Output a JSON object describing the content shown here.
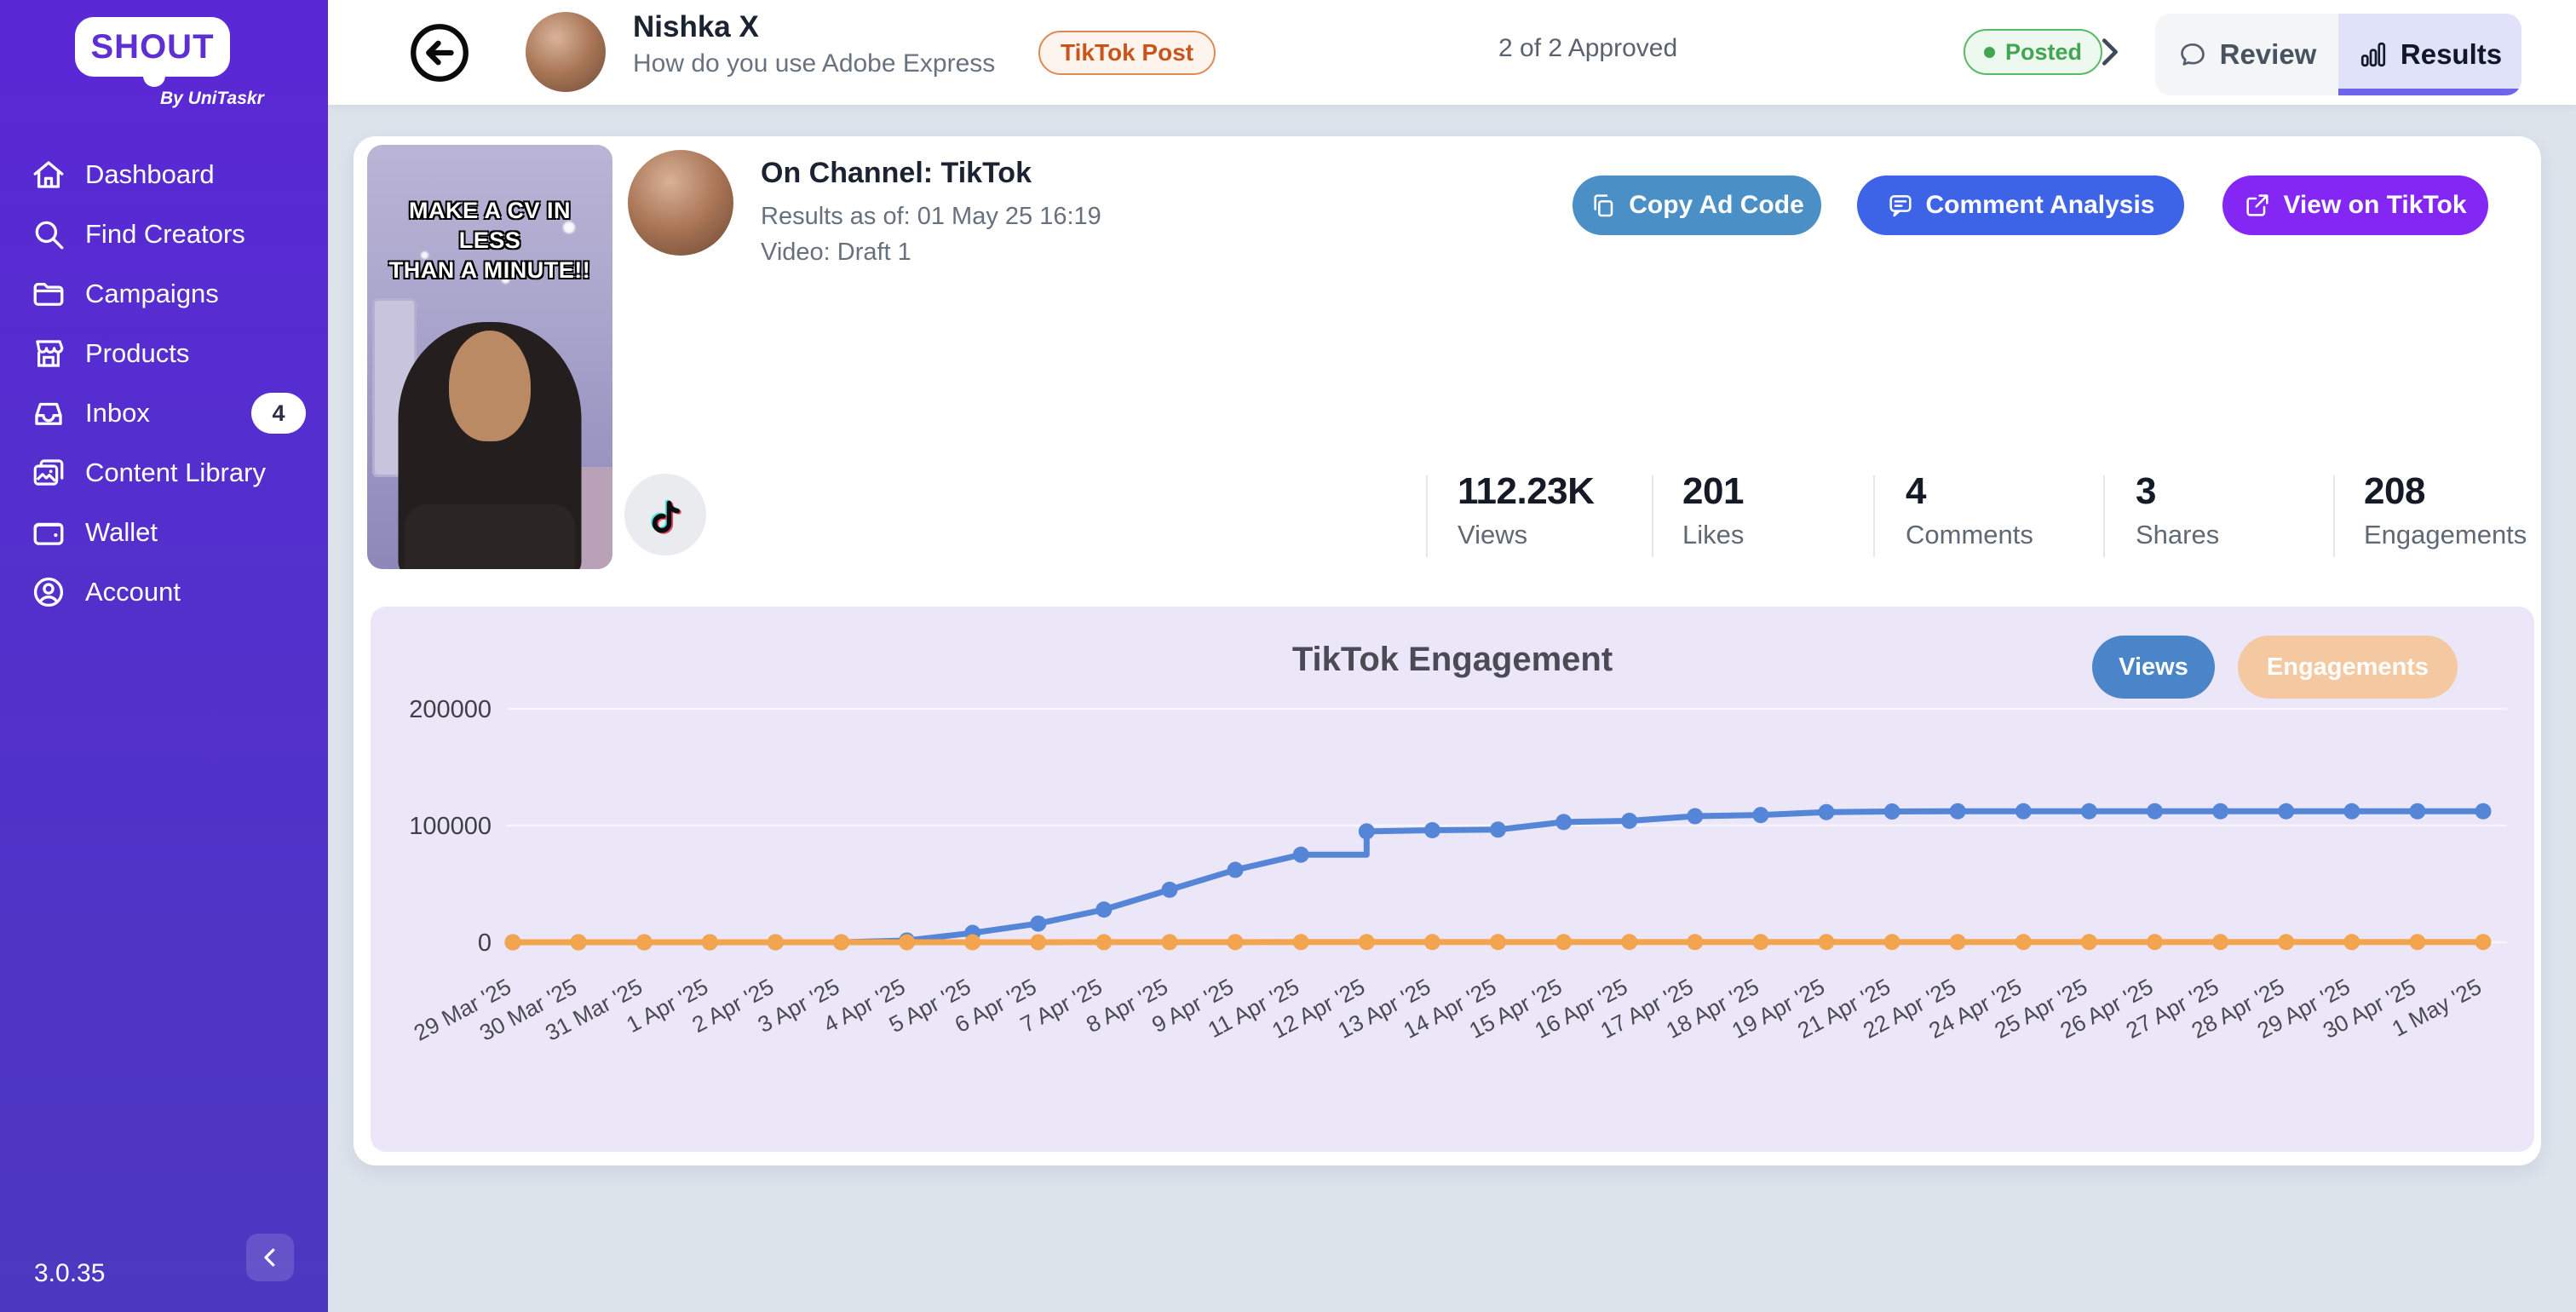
{
  "app": {
    "logo_text": "SHOUT",
    "logo_sub": "By UniTaskr",
    "version": "3.0.35"
  },
  "sidebar": {
    "items": [
      {
        "label": "Dashboard"
      },
      {
        "label": "Find Creators"
      },
      {
        "label": "Campaigns"
      },
      {
        "label": "Products"
      },
      {
        "label": "Inbox",
        "badge": "4"
      },
      {
        "label": "Content Library"
      },
      {
        "label": "Wallet"
      },
      {
        "label": "Account"
      }
    ]
  },
  "header": {
    "creator_name": "Nishka X",
    "campaign_title": "How do you use Adobe Express",
    "type_badge": "TikTok Post",
    "approval_status": "2 of 2 Approved",
    "post_status": "Posted",
    "tabs": [
      {
        "label": "Review",
        "active": false
      },
      {
        "label": "Results",
        "active": true
      }
    ]
  },
  "post": {
    "channel": "On Channel: TikTok",
    "results_as_of": "Results as of: 01 May 25 16:19",
    "video": "Video: Draft 1",
    "thumbnail_caption_line1": "MAKE A CV IN LESS",
    "thumbnail_caption_line2": "THAN A MINUTE!!",
    "buttons": {
      "copy": "Copy Ad Code",
      "comment": "Comment Analysis",
      "view": "View on TikTok"
    },
    "button_colors": {
      "copy": "#4a8fc6",
      "comment": "#3d63e6",
      "view": "#8426f4"
    }
  },
  "stats": [
    {
      "value": "112.23K",
      "label": "Views"
    },
    {
      "value": "201",
      "label": "Likes"
    },
    {
      "value": "4",
      "label": "Comments"
    },
    {
      "value": "3",
      "label": "Shares"
    },
    {
      "value": "208",
      "label": "Engagements"
    }
  ],
  "chart_data": {
    "type": "line",
    "title": "TikTok Engagement",
    "ylim": [
      0,
      200000
    ],
    "yticks": [
      0,
      100000,
      200000
    ],
    "grid": true,
    "legend_position": "top-right-toggles",
    "categories": [
      "29 Mar '25",
      "30 Mar '25",
      "31 Mar '25",
      "1 Apr '25",
      "2 Apr '25",
      "3 Apr '25",
      "4 Apr '25",
      "5 Apr '25",
      "6 Apr '25",
      "7 Apr '25",
      "8 Apr '25",
      "9 Apr '25",
      "11 Apr '25",
      "12 Apr '25",
      "13 Apr '25",
      "14 Apr '25",
      "15 Apr '25",
      "16 Apr '25",
      "17 Apr '25",
      "18 Apr '25",
      "19 Apr '25",
      "21 Apr '25",
      "22 Apr '25",
      "24 Apr '25",
      "25 Apr '25",
      "26 Apr '25",
      "27 Apr '25",
      "28 Apr '25",
      "29 Apr '25",
      "30 Apr '25",
      "1 May '25"
    ],
    "series": [
      {
        "name": "Views",
        "color": "#5585d6",
        "active": true,
        "step_before_index": 13,
        "values": [
          0,
          0,
          0,
          0,
          0,
          0,
          1500,
          8000,
          16000,
          28000,
          45000,
          62000,
          75000,
          95000,
          96000,
          96500,
          103000,
          104000,
          108000,
          109000,
          111500,
          112000,
          112230,
          112230,
          112230,
          112230,
          112230,
          112230,
          112230,
          112230,
          112230
        ]
      },
      {
        "name": "Engagements",
        "color": "#f2a44e",
        "active": false,
        "values": [
          0,
          0,
          0,
          0,
          0,
          0,
          2,
          10,
          30,
          55,
          85,
          115,
          140,
          170,
          180,
          185,
          192,
          195,
          200,
          202,
          205,
          206,
          207,
          208,
          208,
          208,
          208,
          208,
          208,
          208,
          208
        ]
      }
    ]
  }
}
